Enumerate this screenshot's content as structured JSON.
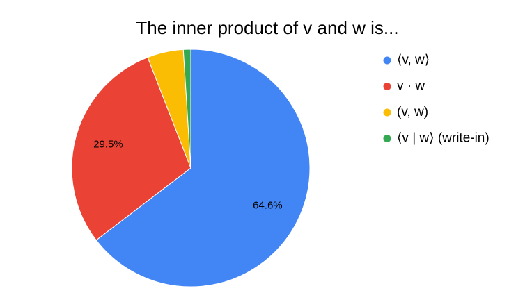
{
  "chart_data": {
    "type": "pie",
    "title": "The inner product of v and w is...",
    "categories": [
      "⟨v, w⟩",
      "v · w",
      "(v, w)",
      "⟨v | w⟩ (write-in)"
    ],
    "values": [
      64.6,
      29.5,
      4.9,
      1.0
    ],
    "value_labels": [
      "64.6%",
      "29.5%",
      null,
      null
    ],
    "colors": [
      "#4285f4",
      "#ea4335",
      "#fbbc04",
      "#34a853"
    ],
    "legend": "right"
  }
}
